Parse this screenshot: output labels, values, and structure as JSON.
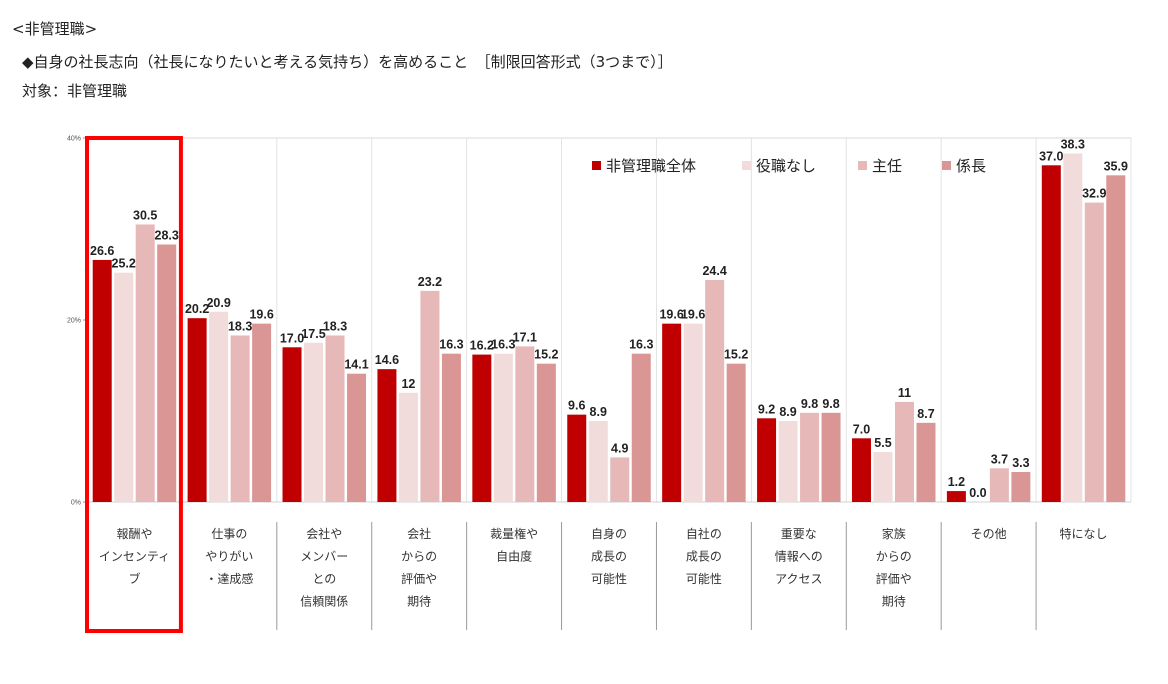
{
  "header": {
    "section": "<非管理職>",
    "question": "◆自身の社長志向（社長になりたいと考える気持ち）を高めること　［制限回答形式（3つまで）］",
    "target": "対象：非管理職"
  },
  "highlight": {
    "category_index": 0,
    "color": "#ff0000"
  },
  "chart_data": {
    "type": "bar",
    "title": "自身の社長志向（社長になりたいと考える気持ち）を高めること",
    "xlabel": "",
    "ylabel": "",
    "ylim": [
      0,
      40
    ],
    "yticks": [
      "0%",
      "20%",
      "40%"
    ],
    "ytick_values": [
      0,
      20,
      40
    ],
    "legend_position": "top-right",
    "grid": true,
    "categories": [
      [
        "報酬や",
        "インセンティ",
        "ブ"
      ],
      [
        "仕事の",
        "やりがい",
        "・達成感"
      ],
      [
        "会社や",
        "メンバー",
        "との",
        "信頼関係"
      ],
      [
        "会社",
        "からの",
        "評価や",
        "期待"
      ],
      [
        "裁量権や",
        "自由度"
      ],
      [
        "自身の",
        "成長の",
        "可能性"
      ],
      [
        "自社の",
        "成長の",
        "可能性"
      ],
      [
        "重要な",
        "情報への",
        "アクセス"
      ],
      [
        "家族",
        "からの",
        "評価や",
        "期待"
      ],
      [
        "その他"
      ],
      [
        "特になし"
      ]
    ],
    "series": [
      {
        "name": "非管理職全体",
        "color": "#c00000",
        "values": [
          26.6,
          20.2,
          17.0,
          14.6,
          16.2,
          9.6,
          19.6,
          9.2,
          7.0,
          1.2,
          37.0
        ],
        "labels": [
          "26.6",
          "20.2",
          "17.0",
          "14.6",
          "16.2",
          "9.6",
          "19.6",
          "9.2",
          "7.0",
          "1.2",
          "37.0"
        ]
      },
      {
        "name": "役職なし",
        "color": "#f2dcdb",
        "values": [
          25.2,
          20.9,
          17.5,
          12.0,
          16.3,
          8.9,
          19.6,
          8.9,
          5.5,
          0.0,
          38.3
        ],
        "labels": [
          "25.2",
          "20.9",
          "17.5",
          "12",
          "16.3",
          "8.9",
          "19.6",
          "8.9",
          "5.5",
          "0.0",
          "38.3"
        ]
      },
      {
        "name": "主任",
        "color": "#e6b8b7",
        "values": [
          30.5,
          18.3,
          18.3,
          23.2,
          17.1,
          4.9,
          24.4,
          9.8,
          11.0,
          3.7,
          32.9
        ],
        "labels": [
          "30.5",
          "18.3",
          "18.3",
          "23.2",
          "17.1",
          "4.9",
          "24.4",
          "9.8",
          "11",
          "3.7",
          "32.9"
        ]
      },
      {
        "name": "係長",
        "color": "#da9694",
        "values": [
          28.3,
          19.6,
          14.1,
          16.3,
          15.2,
          16.3,
          15.2,
          9.8,
          8.7,
          3.3,
          35.9
        ],
        "labels": [
          "28.3",
          "19.6",
          "14.1",
          "16.3",
          "15.2",
          "16.3",
          "15.2",
          "9.8",
          "8.7",
          "3.3",
          "35.9"
        ]
      }
    ]
  }
}
